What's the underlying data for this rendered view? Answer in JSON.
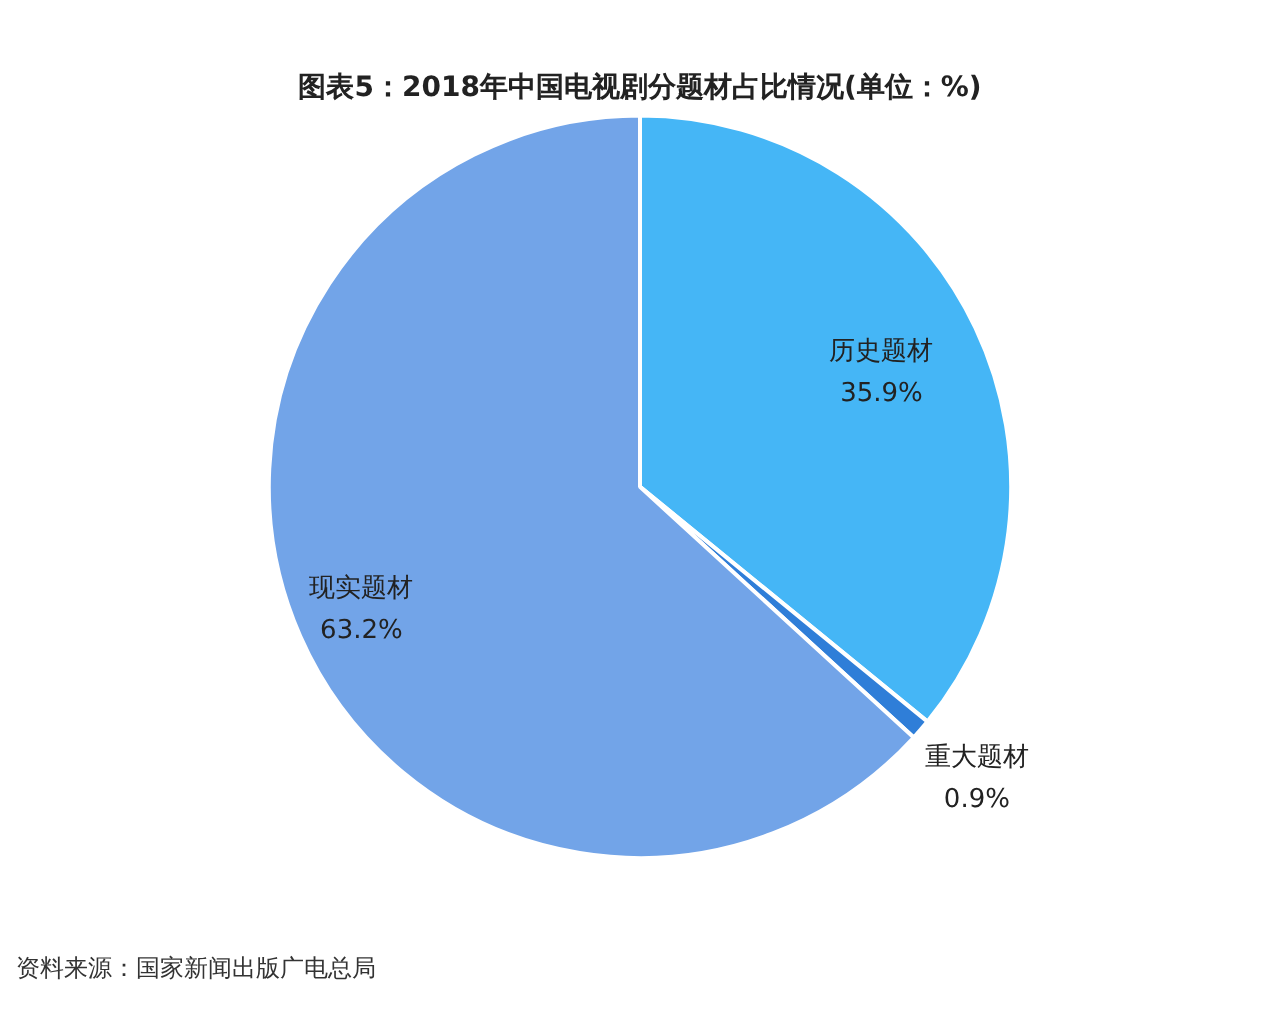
{
  "chart_data": {
    "type": "pie",
    "title": "图表5：2018年中国电视剧分题材占比情况(单位：%)",
    "categories": [
      "历史题材",
      "重大题材",
      "现实题材"
    ],
    "values": [
      35.9,
      0.9,
      63.2
    ],
    "value_labels": [
      "35.9%",
      "0.9%",
      "63.2%"
    ],
    "colors": [
      "#45b6f6",
      "#2f7ed8",
      "#72a4e8"
    ],
    "legend": false,
    "annotations": [
      "资料来源：国家新闻出版广电总局"
    ]
  }
}
